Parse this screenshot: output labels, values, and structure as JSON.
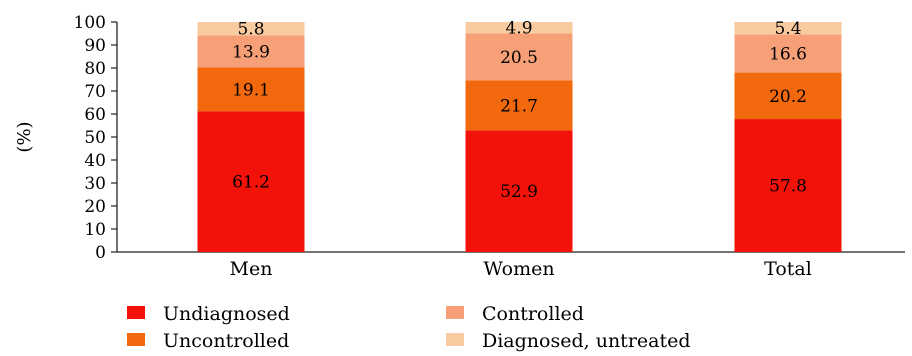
{
  "chart_data": {
    "type": "bar",
    "stacked": true,
    "ylabel": "(%)",
    "ylim": [
      0,
      100
    ],
    "yticks": [
      0,
      10,
      20,
      30,
      40,
      50,
      60,
      70,
      80,
      90,
      100
    ],
    "grid": false,
    "categories": [
      "Men",
      "Women",
      "Total"
    ],
    "series": [
      {
        "name": "Undiagnosed",
        "color": "#f2120a",
        "values": [
          61.2,
          52.9,
          57.8
        ]
      },
      {
        "name": "Uncontrolled",
        "color": "#f2680c",
        "values": [
          19.1,
          21.7,
          20.2
        ]
      },
      {
        "name": "Controlled",
        "color": "#f7a078",
        "values": [
          13.9,
          20.5,
          16.6
        ]
      },
      {
        "name": "Diagnosed, untreated",
        "color": "#f9cba0",
        "values": [
          5.8,
          4.9,
          5.4
        ]
      }
    ],
    "legend_position": "bottom"
  }
}
